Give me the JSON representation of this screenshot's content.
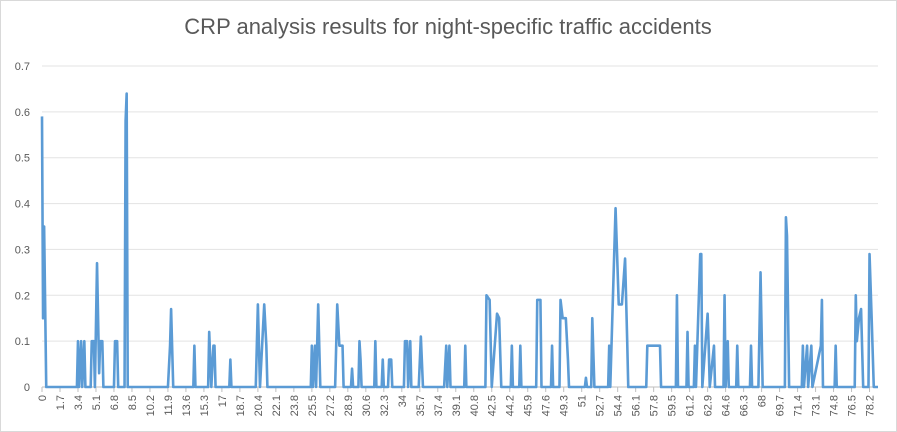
{
  "chart_data": {
    "type": "line",
    "title": "CRP analysis results for night-specific traffic accidents",
    "series": [
      {
        "color": "#5b9bd5",
        "x": [
          0,
          0.1,
          0.2,
          0.4,
          3.3,
          3.4,
          3.5,
          3.7,
          3.8,
          4.0,
          4.1,
          4.6,
          4.7,
          4.9,
          5.0,
          5.2,
          5.4,
          5.5,
          5.7,
          5.8,
          6.8,
          6.9,
          7.1,
          7.2,
          7.8,
          7.9,
          8.0,
          8.1,
          11.9,
          12.1,
          12.2,
          12.4,
          14.3,
          14.4,
          14.5,
          15.7,
          15.8,
          15.9,
          16.0,
          16.2,
          16.3,
          16.4,
          17.7,
          17.8,
          17.9,
          20.2,
          20.4,
          20.6,
          20.8,
          21.0,
          21.2,
          21.3,
          25.4,
          25.5,
          25.6,
          25.8,
          25.9,
          26.1,
          26.3,
          27.7,
          27.9,
          28.1,
          28.4,
          28.5,
          29.2,
          29.3,
          29.4,
          29.9,
          30.0,
          30.1,
          30.2,
          31.4,
          31.5,
          31.6,
          32.1,
          32.2,
          32.3,
          32.7,
          32.8,
          33.0,
          33.1,
          34.2,
          34.3,
          34.5,
          34.6,
          34.8,
          34.9,
          35.6,
          35.8,
          36.0,
          38.0,
          38.2,
          38.3,
          38.5,
          38.6,
          39.9,
          40.0,
          40.1,
          41.9,
          42.0,
          42.3,
          42.5,
          43.0,
          43.2,
          43.4,
          44.3,
          44.4,
          44.5,
          45.1,
          45.2,
          45.3,
          46.7,
          46.8,
          47.1,
          47.2,
          48.1,
          48.2,
          48.3,
          48.9,
          49.0,
          49.2,
          49.5,
          49.7,
          49.8,
          51.3,
          51.4,
          51.5,
          51.9,
          52.0,
          52.2,
          53.5,
          53.6,
          53.7,
          54.2,
          54.5,
          54.8,
          55.1,
          55.3,
          55.4,
          57.1,
          57.2,
          58.4,
          58.5,
          59.9,
          60.0,
          60.1,
          60.9,
          61.0,
          61.1,
          61.6,
          61.7,
          61.8,
          62.2,
          62.3,
          62.4,
          62.9,
          63.0,
          63.1,
          63.5,
          63.6,
          64.4,
          64.5,
          64.6,
          64.8,
          64.9,
          65.6,
          65.7,
          65.8,
          66.9,
          67.0,
          67.1,
          67.7,
          67.9,
          68.1,
          70.2,
          70.3,
          70.4,
          70.6,
          71.8,
          71.9,
          72.0,
          72.3,
          72.4,
          72.7,
          72.8,
          73.6,
          73.7,
          73.8,
          74.9,
          75.0,
          75.1,
          76.8,
          76.9,
          77.0,
          77.2,
          77.4,
          77.6,
          78.1,
          78.2,
          78.4,
          78.6,
          79.0
        ],
        "values": [
          0.59,
          0.15,
          0.35,
          0,
          0,
          0.1,
          0,
          0.1,
          0,
          0.1,
          0,
          0,
          0.1,
          0.1,
          0,
          0.27,
          0.03,
          0.1,
          0.1,
          0,
          0,
          0.1,
          0.1,
          0,
          0,
          0.58,
          0.64,
          0,
          0,
          0.09,
          0.17,
          0,
          0,
          0.09,
          0,
          0,
          0.12,
          0.06,
          0,
          0.09,
          0.09,
          0,
          0,
          0.06,
          0,
          0,
          0.18,
          0,
          0.09,
          0.18,
          0.09,
          0,
          0,
          0.09,
          0,
          0.09,
          0,
          0.18,
          0,
          0,
          0.18,
          0.09,
          0.09,
          0,
          0,
          0.04,
          0,
          0,
          0.1,
          0.06,
          0,
          0,
          0.1,
          0,
          0,
          0.06,
          0,
          0,
          0.06,
          0.06,
          0,
          0,
          0.1,
          0.1,
          0,
          0.1,
          0,
          0,
          0.11,
          0,
          0,
          0.09,
          0,
          0.09,
          0,
          0,
          0.09,
          0,
          0,
          0.2,
          0.19,
          0,
          0.16,
          0.15,
          0,
          0,
          0.09,
          0,
          0,
          0.09,
          0,
          0,
          0.19,
          0.19,
          0,
          0,
          0.09,
          0,
          0,
          0.19,
          0.15,
          0.15,
          0.06,
          0,
          0,
          0.02,
          0,
          0,
          0.15,
          0,
          0,
          0.09,
          0,
          0.39,
          0.18,
          0.18,
          0.28,
          0.1,
          0,
          0,
          0.09,
          0.09,
          0,
          0,
          0.2,
          0,
          0,
          0.12,
          0,
          0,
          0.09,
          0,
          0.29,
          0.29,
          0,
          0.16,
          0.09,
          0,
          0.09,
          0,
          0,
          0.2,
          0,
          0.1,
          0,
          0,
          0.09,
          0,
          0,
          0.09,
          0,
          0,
          0.25,
          0,
          0,
          0.37,
          0.33,
          0,
          0,
          0.09,
          0,
          0.09,
          0,
          0.09,
          0,
          0.09,
          0.19,
          0,
          0,
          0.09,
          0,
          0,
          0.2,
          0.1,
          0.15,
          0.17,
          0,
          0,
          0.29,
          0.15,
          0,
          0
        ]
      }
    ],
    "xlim": [
      0,
      79
    ],
    "xticks": [
      0,
      1.7,
      3.4,
      5.1,
      6.8,
      8.5,
      10.2,
      11.9,
      13.6,
      15.3,
      17,
      18.7,
      20.4,
      22.1,
      23.8,
      25.5,
      27.2,
      28.9,
      30.6,
      32.3,
      34,
      35.7,
      37.4,
      39.1,
      40.8,
      42.5,
      44.2,
      45.9,
      47.6,
      49.3,
      51,
      52.7,
      54.4,
      56.1,
      57.8,
      59.5,
      61.2,
      62.9,
      64.6,
      66.3,
      68,
      69.7,
      71.4,
      73.1,
      74.8,
      76.5,
      78.2
    ],
    "ylim": [
      0,
      0.7
    ],
    "yticks": [
      0,
      0.1,
      0.2,
      0.3,
      0.4,
      0.5,
      0.6,
      0.7
    ],
    "grid": true
  }
}
